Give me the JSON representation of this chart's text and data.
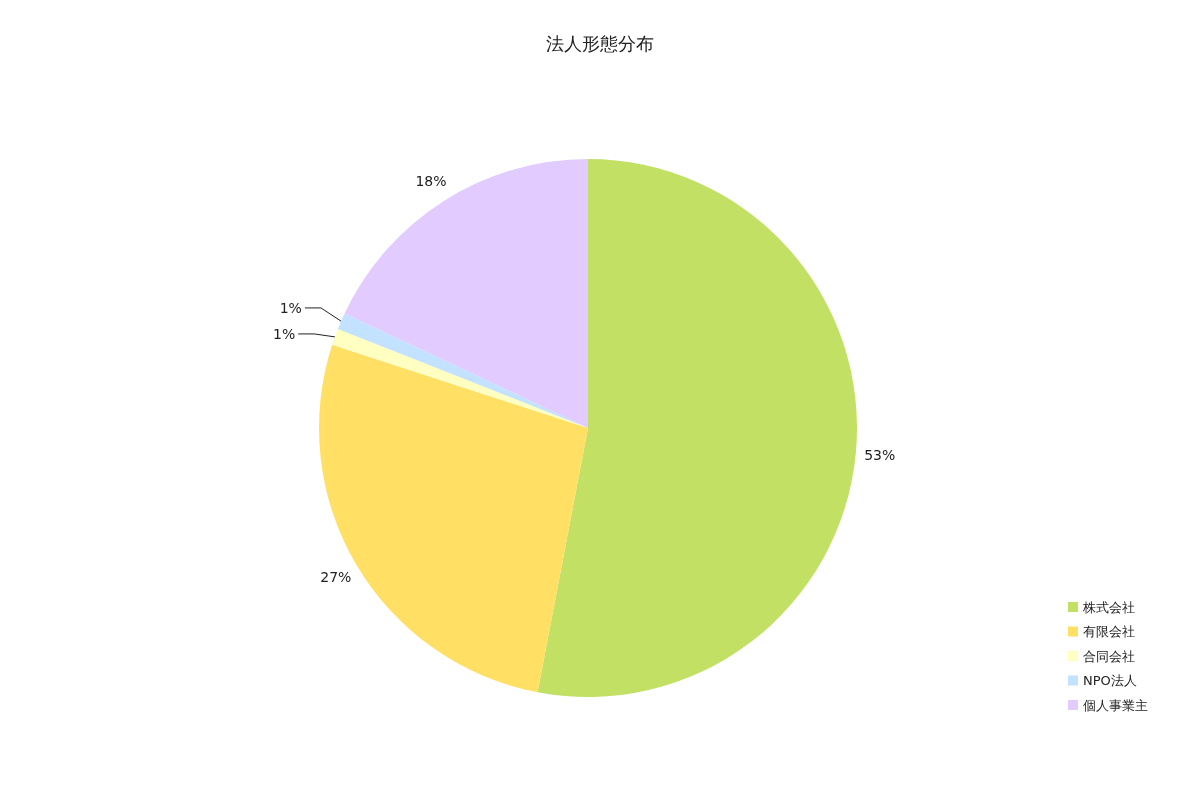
{
  "chart_data": {
    "type": "pie",
    "title": "法人形態分布",
    "categories": [
      "株式会社",
      "有限会社",
      "合同会社",
      "NPO法人",
      "個人事業主"
    ],
    "values": [
      53,
      27,
      1,
      1,
      18
    ],
    "colors": [
      "#c2e064",
      "#ffe064",
      "#ffffc2",
      "#c2e2ff",
      "#e2cbff"
    ],
    "value_labels": [
      "53%",
      "27%",
      "1%",
      "1%",
      "18%"
    ],
    "legend": "bottom right"
  }
}
